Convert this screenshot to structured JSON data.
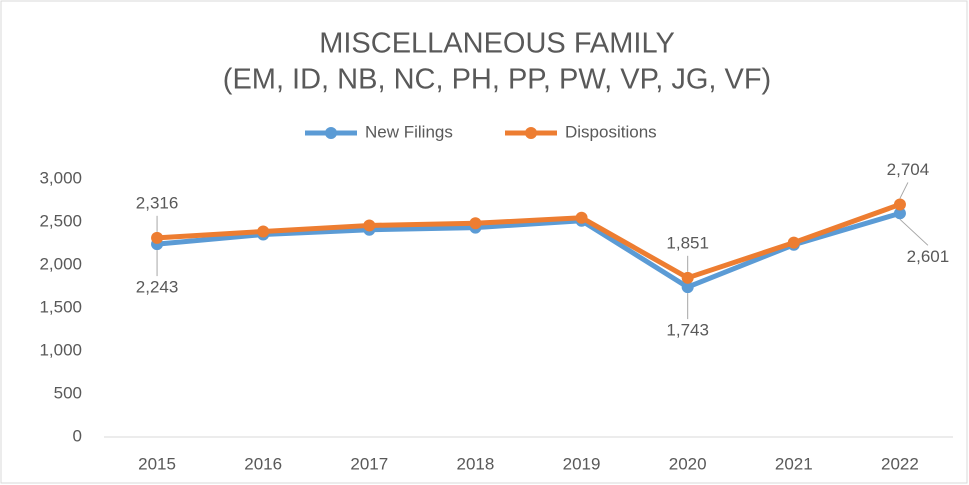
{
  "chart_data": {
    "type": "line",
    "title": "MISCELLANEOUS FAMILY",
    "subtitle": "(EM, ID, NB, NC, PH, PP, PW, VP, JG, VF)",
    "categories": [
      "2015",
      "2016",
      "2017",
      "2018",
      "2019",
      "2020",
      "2021",
      "2022"
    ],
    "series": [
      {
        "name": "New Filings",
        "color": "#5b9bd5",
        "values": [
          2243,
          2355,
          2410,
          2435,
          2515,
          1743,
          2235,
          2601
        ],
        "value_labels": [
          "2,243",
          null,
          null,
          null,
          null,
          "1,743",
          null,
          "2,601"
        ]
      },
      {
        "name": "Dispositions",
        "color": "#ed7d31",
        "values": [
          2316,
          2390,
          2460,
          2485,
          2550,
          1851,
          2260,
          2704
        ],
        "value_labels": [
          "2,316",
          null,
          null,
          null,
          null,
          "1,851",
          null,
          "2,704"
        ]
      }
    ],
    "ylim": [
      0,
      3000
    ],
    "yticks": [
      0,
      500,
      {
        "value": 1000,
        "label": "1,000"
      },
      {
        "value": 1500,
        "label": "1,500"
      },
      {
        "value": 2000,
        "label": "2,000"
      },
      {
        "value": 2500,
        "label": "2,500"
      },
      {
        "value": 3000,
        "label": "3,000"
      }
    ],
    "grid": false,
    "legend": "top"
  }
}
